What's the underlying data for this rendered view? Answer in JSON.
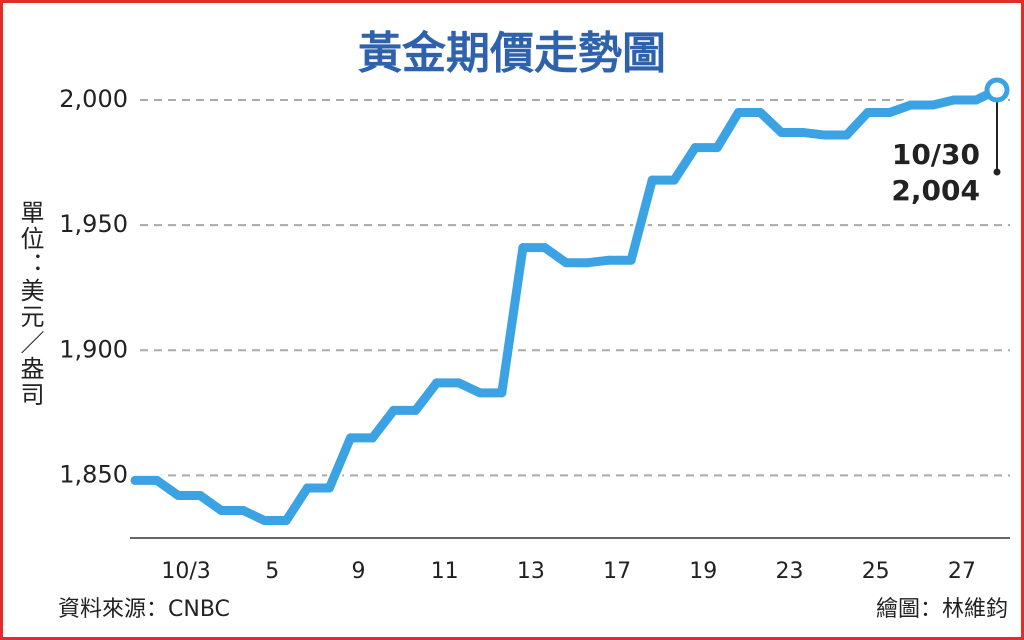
{
  "chart_data": {
    "type": "line",
    "title": "黃金期價走勢圖",
    "y_axis_label": "單位：美元／盎司",
    "source": "資料來源：CNBC",
    "credit": "繪圖：林維鈞",
    "categories": [
      null,
      "10/3",
      null,
      "5",
      null,
      "9",
      null,
      "11",
      null,
      "13",
      null,
      "17",
      null,
      "19",
      null,
      "23",
      null,
      "25",
      null,
      "27",
      null
    ],
    "series": [
      {
        "name": "黃金期價",
        "color": "#3ba3e3",
        "values": [
          1848,
          1842,
          1836,
          1832,
          1845,
          1865,
          1876,
          1887,
          1883,
          1941,
          1935,
          1936,
          1968,
          1981,
          1995,
          1987,
          1986,
          1995,
          1998,
          2000,
          2004
        ]
      }
    ],
    "annotation": {
      "date": "10/30",
      "value_label": "2,004"
    },
    "ylim": [
      1825,
      2008
    ],
    "yticks": [
      {
        "value": 1850,
        "label": "1,850"
      },
      {
        "value": 1900,
        "label": "1,900"
      },
      {
        "value": 1950,
        "label": "1,950"
      },
      {
        "value": 2000,
        "label": "2,000"
      }
    ],
    "grid": true
  }
}
